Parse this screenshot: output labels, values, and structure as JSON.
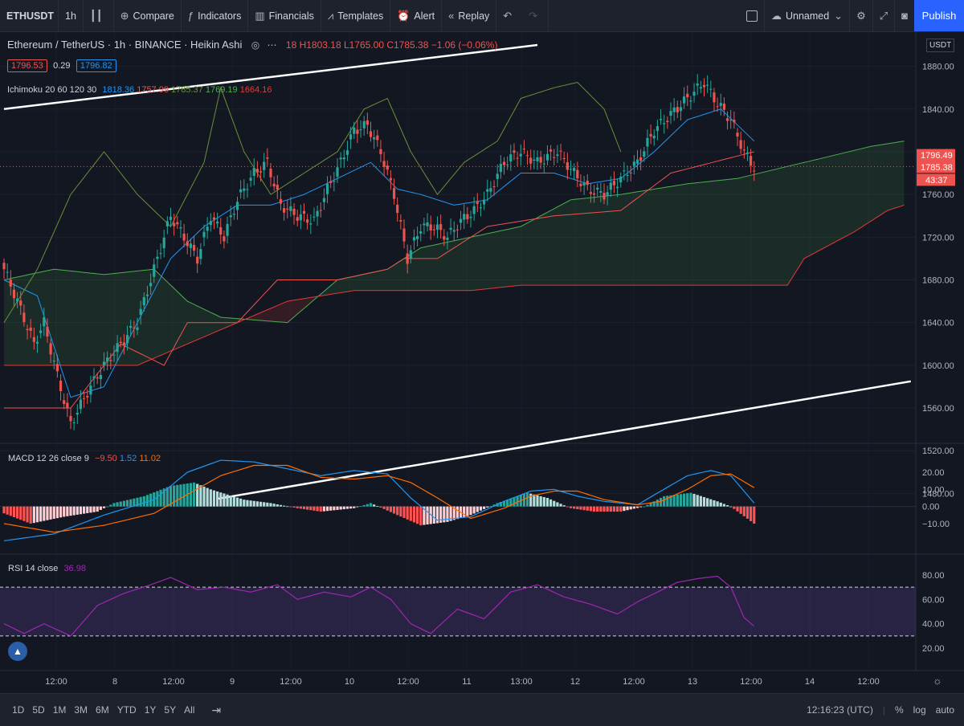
{
  "toolbar": {
    "symbol": "ETHUSDT",
    "interval": "1h",
    "compare": "Compare",
    "indicators": "Indicators",
    "financials": "Financials",
    "templates": "Templates",
    "alert": "Alert",
    "replay": "Replay",
    "layout_name": "Unnamed",
    "publish": "Publish"
  },
  "legend": {
    "title": "Ethereum / TetherUS · 1h · BINANCE · Heikin Ashi",
    "ohlc_tail": "18 H1803.18 L1765.00 C1785.38 −1.06 (−0.06%)",
    "bid": "1796.53",
    "spread": "0.29",
    "ask": "1796.82",
    "ichimoku_label": "Ichimoku 20 60 120 30",
    "ichimoku_values": [
      "1818.36",
      "1757.99",
      "1785.37",
      "1769.19",
      "1664.16"
    ],
    "macd_label": "MACD 12 26 close 9",
    "macd_values": [
      "−9.50",
      "1.52",
      "11.02"
    ],
    "rsi_label": "RSI 14 close",
    "rsi_value": "36.98",
    "currency": "USDT"
  },
  "bottom": {
    "ranges": [
      "1D",
      "5D",
      "1M",
      "3M",
      "6M",
      "YTD",
      "1Y",
      "5Y",
      "All"
    ],
    "clock": "12:16:23 (UTC)",
    "percent": "%",
    "log": "log",
    "auto": "auto"
  },
  "colors": {
    "up": "#26a69a",
    "down": "#ef5350",
    "tenkan": "#2196f3",
    "kijun": "#ef5350",
    "senkou_a": "#4caf50",
    "senkou_b": "#e53935",
    "chikou": "#6a8f3a",
    "macd": "#2196f3",
    "signal": "#ff6d00",
    "rsi": "#9c27b0"
  },
  "chart_data": [
    {
      "type": "candlestick",
      "title": "Ethereum / TetherUS · 1h · BINANCE · Heikin Ashi",
      "ylim": [
        1460,
        1900
      ],
      "y_ticks": [
        1480,
        1520,
        1560,
        1600,
        1640,
        1680,
        1720,
        1760,
        1800,
        1840,
        1880
      ],
      "x_ticks": [
        "12:00",
        "8",
        "12:00",
        "9",
        "12:00",
        "10",
        "12:00",
        "11",
        "13:00",
        "12",
        "12:00",
        "13",
        "12:00",
        "14",
        "12:00"
      ],
      "price_labels": {
        "last": "1796.49",
        "close": "1785.38",
        "countdown": "43:37"
      },
      "close_anchors": [
        [
          0,
          1690
        ],
        [
          4,
          1660
        ],
        [
          9,
          1620
        ],
        [
          12,
          1640
        ],
        [
          16,
          1590
        ],
        [
          20,
          1545
        ],
        [
          25,
          1575
        ],
        [
          30,
          1600
        ],
        [
          35,
          1620
        ],
        [
          40,
          1640
        ],
        [
          43,
          1670
        ],
        [
          46,
          1700
        ],
        [
          50,
          1740
        ],
        [
          54,
          1720
        ],
        [
          58,
          1700
        ],
        [
          62,
          1740
        ],
        [
          66,
          1720
        ],
        [
          70,
          1755
        ],
        [
          75,
          1780
        ],
        [
          79,
          1790
        ],
        [
          83,
          1750
        ],
        [
          88,
          1740
        ],
        [
          93,
          1735
        ],
        [
          97,
          1765
        ],
        [
          101,
          1790
        ],
        [
          105,
          1820
        ],
        [
          109,
          1825
        ],
        [
          113,
          1800
        ],
        [
          117,
          1760
        ],
        [
          121,
          1700
        ],
        [
          125,
          1730
        ],
        [
          129,
          1730
        ],
        [
          133,
          1720
        ],
        [
          137,
          1735
        ],
        [
          141,
          1745
        ],
        [
          145,
          1760
        ],
        [
          150,
          1790
        ],
        [
          155,
          1800
        ],
        [
          160,
          1790
        ],
        [
          166,
          1800
        ],
        [
          171,
          1780
        ],
        [
          175,
          1765
        ],
        [
          180,
          1760
        ],
        [
          185,
          1775
        ],
        [
          190,
          1790
        ],
        [
          195,
          1820
        ],
        [
          200,
          1835
        ],
        [
          205,
          1850
        ],
        [
          210,
          1865
        ],
        [
          214,
          1845
        ],
        [
          218,
          1830
        ],
        [
          222,
          1800
        ],
        [
          225,
          1785
        ]
      ],
      "ichimoku": {
        "tenkan": [
          [
            0,
            1680
          ],
          [
            10,
            1665
          ],
          [
            20,
            1570
          ],
          [
            30,
            1580
          ],
          [
            40,
            1640
          ],
          [
            50,
            1700
          ],
          [
            60,
            1730
          ],
          [
            70,
            1750
          ],
          [
            80,
            1750
          ],
          [
            90,
            1760
          ],
          [
            100,
            1775
          ],
          [
            110,
            1790
          ],
          [
            118,
            1765
          ],
          [
            125,
            1760
          ],
          [
            135,
            1750
          ],
          [
            145,
            1755
          ],
          [
            155,
            1780
          ],
          [
            165,
            1780
          ],
          [
            175,
            1770
          ],
          [
            185,
            1775
          ],
          [
            195,
            1800
          ],
          [
            205,
            1830
          ],
          [
            215,
            1840
          ],
          [
            225,
            1810
          ]
        ],
        "kijun": [
          [
            0,
            1560
          ],
          [
            20,
            1560
          ],
          [
            35,
            1620
          ],
          [
            48,
            1600
          ],
          [
            55,
            1640
          ],
          [
            70,
            1640
          ],
          [
            82,
            1680
          ],
          [
            100,
            1680
          ],
          [
            115,
            1690
          ],
          [
            120,
            1700
          ],
          [
            130,
            1700
          ],
          [
            145,
            1730
          ],
          [
            165,
            1740
          ],
          [
            185,
            1745
          ],
          [
            200,
            1780
          ],
          [
            225,
            1800
          ]
        ],
        "senkou_a": [
          [
            0,
            1680
          ],
          [
            15,
            1690
          ],
          [
            30,
            1685
          ],
          [
            45,
            1690
          ],
          [
            55,
            1660
          ],
          [
            65,
            1645
          ],
          [
            85,
            1640
          ],
          [
            100,
            1680
          ],
          [
            115,
            1690
          ],
          [
            125,
            1710
          ],
          [
            140,
            1720
          ],
          [
            155,
            1730
          ],
          [
            170,
            1755
          ],
          [
            185,
            1760
          ],
          [
            205,
            1770
          ],
          [
            220,
            1775
          ],
          [
            240,
            1790
          ],
          [
            260,
            1805
          ],
          [
            270,
            1810
          ]
        ],
        "senkou_b": [
          [
            0,
            1600
          ],
          [
            20,
            1600
          ],
          [
            40,
            1600
          ],
          [
            55,
            1620
          ],
          [
            70,
            1640
          ],
          [
            85,
            1660
          ],
          [
            105,
            1670
          ],
          [
            125,
            1670
          ],
          [
            140,
            1670
          ],
          [
            155,
            1675
          ],
          [
            175,
            1675
          ],
          [
            200,
            1675
          ],
          [
            235,
            1675
          ],
          [
            240,
            1700
          ],
          [
            255,
            1725
          ],
          [
            265,
            1745
          ],
          [
            270,
            1750
          ]
        ],
        "chikou": [
          [
            0,
            1640
          ],
          [
            10,
            1690
          ],
          [
            20,
            1760
          ],
          [
            30,
            1800
          ],
          [
            40,
            1760
          ],
          [
            50,
            1730
          ],
          [
            60,
            1790
          ],
          [
            65,
            1860
          ],
          [
            72,
            1800
          ],
          [
            80,
            1760
          ],
          [
            90,
            1780
          ],
          [
            100,
            1800
          ],
          [
            108,
            1840
          ],
          [
            115,
            1850
          ],
          [
            122,
            1800
          ],
          [
            130,
            1760
          ],
          [
            138,
            1790
          ],
          [
            148,
            1810
          ],
          [
            155,
            1850
          ],
          [
            165,
            1860
          ],
          [
            172,
            1865
          ],
          [
            180,
            1840
          ],
          [
            185,
            1800
          ]
        ]
      },
      "trendlines": [
        {
          "from": [
            0,
            1840
          ],
          "to": [
            160,
            1900
          ]
        },
        {
          "from": [
            64,
            1475
          ],
          "to": [
            272,
            1585
          ]
        }
      ]
    },
    {
      "type": "bar",
      "title": "MACD 12 26 close 9",
      "ylim": [
        -12,
        28
      ],
      "y_ticks": [
        -10,
        0,
        10,
        20
      ],
      "histogram_anchors": [
        [
          0,
          -4
        ],
        [
          8,
          -10
        ],
        [
          18,
          -6
        ],
        [
          28,
          -3
        ],
        [
          33,
          2
        ],
        [
          42,
          6
        ],
        [
          50,
          12
        ],
        [
          57,
          14
        ],
        [
          62,
          10
        ],
        [
          72,
          4
        ],
        [
          80,
          2
        ],
        [
          88,
          -1
        ],
        [
          95,
          -3
        ],
        [
          105,
          -1
        ],
        [
          110,
          2
        ],
        [
          118,
          -5
        ],
        [
          125,
          -11
        ],
        [
          133,
          -9
        ],
        [
          140,
          -5
        ],
        [
          148,
          2
        ],
        [
          157,
          8
        ],
        [
          163,
          5
        ],
        [
          170,
          -1
        ],
        [
          177,
          -3
        ],
        [
          185,
          -3
        ],
        [
          192,
          0
        ],
        [
          198,
          6
        ],
        [
          206,
          8
        ],
        [
          214,
          3
        ],
        [
          218,
          0
        ],
        [
          225,
          -10
        ]
      ],
      "macd_anchors": [
        [
          0,
          -20
        ],
        [
          15,
          -16
        ],
        [
          30,
          -5
        ],
        [
          45,
          4
        ],
        [
          55,
          20
        ],
        [
          65,
          27
        ],
        [
          75,
          26
        ],
        [
          85,
          22
        ],
        [
          95,
          18
        ],
        [
          105,
          21
        ],
        [
          115,
          19
        ],
        [
          122,
          5
        ],
        [
          130,
          -8
        ],
        [
          140,
          -6
        ],
        [
          150,
          3
        ],
        [
          158,
          9
        ],
        [
          165,
          10
        ],
        [
          172,
          6
        ],
        [
          180,
          3
        ],
        [
          190,
          1
        ],
        [
          197,
          9
        ],
        [
          205,
          18
        ],
        [
          212,
          21
        ],
        [
          218,
          18
        ],
        [
          225,
          2
        ]
      ],
      "signal_anchors": [
        [
          0,
          -10
        ],
        [
          15,
          -15
        ],
        [
          30,
          -11
        ],
        [
          45,
          -4
        ],
        [
          55,
          7
        ],
        [
          65,
          18
        ],
        [
          75,
          24
        ],
        [
          85,
          24
        ],
        [
          95,
          17
        ],
        [
          105,
          16
        ],
        [
          115,
          18
        ],
        [
          122,
          14
        ],
        [
          130,
          5
        ],
        [
          140,
          -7
        ],
        [
          150,
          -1
        ],
        [
          158,
          6
        ],
        [
          165,
          9
        ],
        [
          172,
          9
        ],
        [
          180,
          4
        ],
        [
          190,
          1
        ],
        [
          197,
          3
        ],
        [
          205,
          10
        ],
        [
          212,
          18
        ],
        [
          218,
          19
        ],
        [
          225,
          11
        ]
      ]
    },
    {
      "type": "line",
      "title": "RSI 14 close",
      "ylim": [
        20,
        90
      ],
      "y_ticks": [
        20,
        40,
        60,
        80
      ],
      "band": [
        30,
        70
      ],
      "rsi_anchors": [
        [
          0,
          40
        ],
        [
          6,
          32
        ],
        [
          12,
          40
        ],
        [
          20,
          30
        ],
        [
          28,
          55
        ],
        [
          36,
          65
        ],
        [
          44,
          72
        ],
        [
          50,
          78
        ],
        [
          58,
          68
        ],
        [
          66,
          70
        ],
        [
          74,
          66
        ],
        [
          82,
          72
        ],
        [
          88,
          60
        ],
        [
          96,
          66
        ],
        [
          104,
          62
        ],
        [
          110,
          70
        ],
        [
          116,
          60
        ],
        [
          122,
          40
        ],
        [
          128,
          32
        ],
        [
          136,
          52
        ],
        [
          144,
          44
        ],
        [
          152,
          66
        ],
        [
          160,
          72
        ],
        [
          168,
          62
        ],
        [
          176,
          56
        ],
        [
          184,
          48
        ],
        [
          190,
          58
        ],
        [
          196,
          66
        ],
        [
          202,
          74
        ],
        [
          208,
          77
        ],
        [
          214,
          79
        ],
        [
          218,
          70
        ],
        [
          222,
          45
        ],
        [
          225,
          38
        ]
      ]
    }
  ]
}
